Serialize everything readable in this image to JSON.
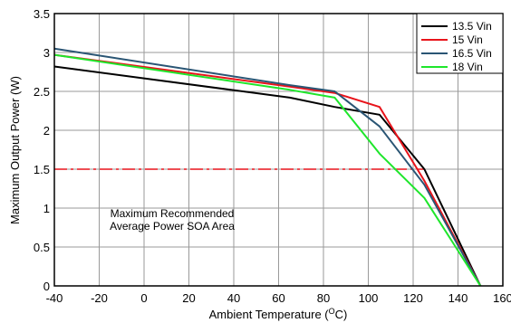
{
  "chart_data": {
    "type": "line",
    "xlabel": "Ambient Temperature (",
    "xlabel_sup": "O",
    "xlabel_suffix": "C)",
    "ylabel": "Maximum Output Power (W)",
    "xlim": [
      -40,
      160
    ],
    "ylim": [
      0,
      3.5
    ],
    "xticks": [
      -40,
      -20,
      0,
      20,
      40,
      60,
      80,
      100,
      120,
      140,
      160
    ],
    "yticks": [
      0,
      0.5,
      1,
      1.5,
      2,
      2.5,
      3,
      3.5
    ],
    "ytick_labels": [
      "0",
      "0.5",
      "1",
      "1.5",
      "2",
      "2.5",
      "3",
      "3.5"
    ],
    "grid": true,
    "legend_position": "top-right",
    "series": [
      {
        "name": "13.5 Vin",
        "color": "#000000",
        "x": [
          -40,
          65,
          85,
          105,
          125,
          150
        ],
        "y": [
          2.82,
          2.42,
          2.3,
          2.2,
          1.5,
          0
        ]
      },
      {
        "name": "15 Vin",
        "color": "#e8141b",
        "x": [
          -40,
          65,
          85,
          105,
          125,
          150
        ],
        "y": [
          2.97,
          2.56,
          2.48,
          2.3,
          1.35,
          0
        ]
      },
      {
        "name": "16.5 Vin",
        "color": "#2a5574",
        "x": [
          -40,
          65,
          85,
          105,
          125,
          150
        ],
        "y": [
          3.05,
          2.58,
          2.5,
          2.05,
          1.3,
          0
        ]
      },
      {
        "name": "18 Vin",
        "color": "#1ee62b",
        "x": [
          -40,
          65,
          85,
          105,
          125,
          150
        ],
        "y": [
          2.97,
          2.52,
          2.42,
          1.7,
          1.13,
          0
        ]
      }
    ],
    "reference_line": {
      "y": 1.5,
      "x": [
        -40,
        125
      ],
      "color": "#e8141b",
      "style": "dash-dot"
    },
    "annotation": [
      "Maximum Recommended",
      "Average Power SOA Area"
    ]
  }
}
